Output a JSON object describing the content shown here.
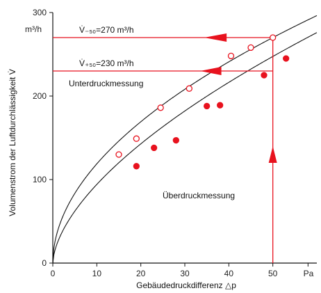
{
  "chart_data": {
    "type": "scatter",
    "xlabel": "Gebäudedruckdifferenz △p",
    "x_unit": "Pa",
    "ylabel": "Volumenstrom der Luftdurchlässigkeit V̇",
    "y_unit": "m³/h",
    "xlim": [
      0,
      60
    ],
    "ylim": [
      0,
      300
    ],
    "x_ticks": [
      "0",
      "10",
      "20",
      "30",
      "40",
      "50"
    ],
    "y_ticks": [
      "0",
      "100",
      "200",
      "300"
    ],
    "series": [
      {
        "name": "Unterdruckmessung",
        "marker": "open-circle",
        "color": "#e8121e",
        "points": [
          [
            15,
            130
          ],
          [
            19,
            149
          ],
          [
            24.5,
            186
          ],
          [
            31,
            209
          ],
          [
            40.5,
            248
          ],
          [
            45,
            258
          ],
          [
            50,
            270
          ]
        ]
      },
      {
        "name": "Überdruckmessung",
        "marker": "filled-circle",
        "color": "#e8121e",
        "points": [
          [
            19,
            116
          ],
          [
            23,
            138
          ],
          [
            28,
            147
          ],
          [
            35,
            188
          ],
          [
            38,
            189
          ],
          [
            48,
            225
          ],
          [
            53,
            245
          ]
        ]
      }
    ],
    "curves": [
      {
        "name": "Unterdruckmessung",
        "color": "#111111",
        "a": 36.72,
        "n": 0.51
      },
      {
        "name": "Überdruckmessung",
        "color": "#111111",
        "a": 23.66,
        "n": 0.6
      }
    ],
    "annotations": {
      "v50_text": "V̇₋₅₀=270 m³/h",
      "v50_value": 270,
      "vplus50_text": "V̇₊₅₀=230 m³/h",
      "vplus50_value": 230,
      "marker_x": 50,
      "line_color": "#e8121e"
    }
  }
}
